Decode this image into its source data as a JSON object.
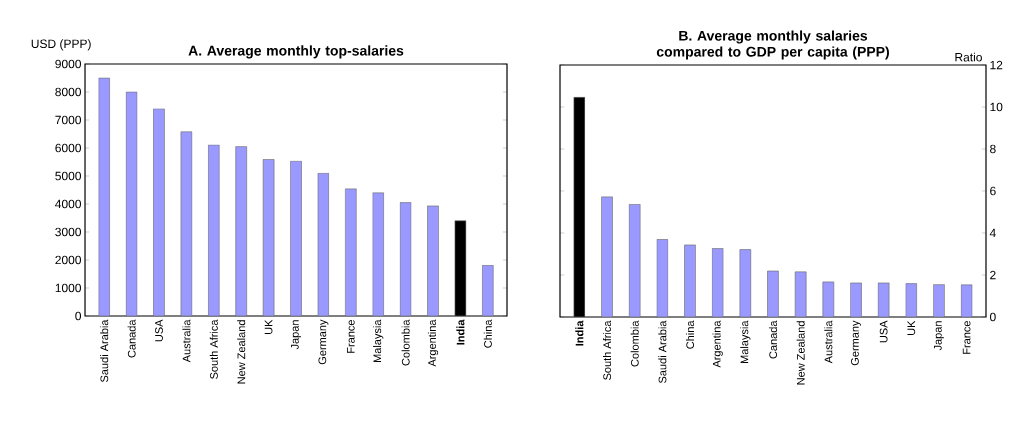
{
  "chart_data": [
    {
      "type": "bar",
      "title": "A. Average monthly top-salaries",
      "ylabel": "USD (PPP)",
      "categories": [
        "Saudi Arabia",
        "Canada",
        "USA",
        "Australia",
        "South Africa",
        "New Zealand",
        "UK",
        "Japan",
        "Germany",
        "France",
        "Malaysia",
        "Colombia",
        "Argentina",
        "**India**",
        "China"
      ],
      "values": [
        8500,
        8000,
        7400,
        6580,
        6110,
        6050,
        5590,
        5530,
        5100,
        4540,
        4400,
        4050,
        3930,
        3400,
        1810
      ],
      "colors": [
        "#9999ff",
        "#9999ff",
        "#9999ff",
        "#9999ff",
        "#9999ff",
        "#9999ff",
        "#9999ff",
        "#9999ff",
        "#9999ff",
        "#9999ff",
        "#9999ff",
        "#9999ff",
        "#9999ff",
        "#000000",
        "#9999ff"
      ],
      "ylim": [
        0,
        9000
      ],
      "yticks": [
        0,
        1000,
        2000,
        3000,
        4000,
        5000,
        6000,
        7000,
        8000,
        9000
      ],
      "grid": false
    },
    {
      "type": "bar",
      "title": "B. Average monthly salaries compared to GDP per capita (PPP)",
      "ylabel": "Ratio",
      "categories": [
        "**India**",
        "South Africa",
        "Colombia",
        "Saudi Arabia",
        "China",
        "Argentina",
        "Malaysia",
        "Canada",
        "New Zealand",
        "Australia",
        "Germany",
        "USA",
        "UK",
        "Japan",
        "France"
      ],
      "values": [
        10.46,
        5.72,
        5.36,
        3.69,
        3.43,
        3.26,
        3.21,
        2.19,
        2.15,
        1.67,
        1.62,
        1.62,
        1.59,
        1.54,
        1.53
      ],
      "colors": [
        "#000000",
        "#9999ff",
        "#9999ff",
        "#9999ff",
        "#9999ff",
        "#9999ff",
        "#9999ff",
        "#9999ff",
        "#9999ff",
        "#9999ff",
        "#9999ff",
        "#9999ff",
        "#9999ff",
        "#9999ff",
        "#9999ff"
      ],
      "ylim": [
        0,
        12
      ],
      "yticks": [
        0,
        2,
        4,
        6,
        8,
        10,
        12
      ],
      "grid": false
    }
  ]
}
